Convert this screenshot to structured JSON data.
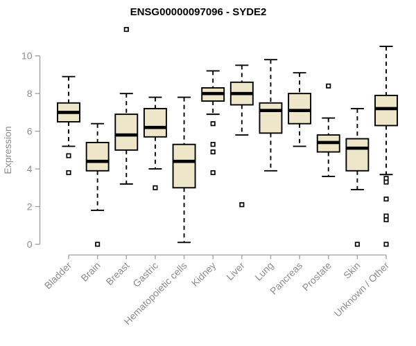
{
  "chart_data": {
    "type": "boxplot",
    "title": "ENSG00000097096 - SYDE2",
    "xlabel": "",
    "ylabel": "Expression",
    "ylim": [
      0,
      11.6
    ],
    "yticks": [
      0,
      2,
      4,
      6,
      8,
      10
    ],
    "grid": false,
    "legend": "none",
    "categories": [
      "Bladder",
      "Brain",
      "Breast",
      "Gastric",
      "Hematopoietic cells",
      "Kidney",
      "Liver",
      "Lung",
      "Pancreas",
      "Prostate",
      "Skin",
      "Unknown / Other"
    ],
    "series": [
      {
        "category": "Bladder",
        "whisker_low": 5.2,
        "q1": 6.5,
        "median": 7.0,
        "q3": 7.5,
        "whisker_high": 8.9,
        "outliers": [
          4.7,
          3.8
        ]
      },
      {
        "category": "Brain",
        "whisker_low": 1.8,
        "q1": 3.9,
        "median": 4.4,
        "q3": 5.4,
        "whisker_high": 6.4,
        "outliers": [
          0
        ]
      },
      {
        "category": "Breast",
        "whisker_low": 3.2,
        "q1": 5.0,
        "median": 5.8,
        "q3": 6.9,
        "whisker_high": 8.0,
        "outliers": [
          11.4
        ]
      },
      {
        "category": "Gastric",
        "whisker_low": 4.0,
        "q1": 5.7,
        "median": 6.2,
        "q3": 7.2,
        "whisker_high": 7.8,
        "outliers": [
          3.0
        ]
      },
      {
        "category": "Hematopoietic cells",
        "whisker_low": 0.1,
        "q1": 3.0,
        "median": 4.4,
        "q3": 5.3,
        "whisker_high": 7.8,
        "outliers": []
      },
      {
        "category": "Kidney",
        "whisker_low": 6.9,
        "q1": 7.6,
        "median": 8.0,
        "q3": 8.3,
        "whisker_high": 9.2,
        "outliers": [
          6.4,
          5.3,
          4.9,
          3.8
        ]
      },
      {
        "category": "Liver",
        "whisker_low": 5.8,
        "q1": 7.4,
        "median": 8.0,
        "q3": 8.6,
        "whisker_high": 9.5,
        "outliers": [
          2.1
        ]
      },
      {
        "category": "Lung",
        "whisker_low": 3.9,
        "q1": 5.9,
        "median": 7.1,
        "q3": 7.5,
        "whisker_high": 9.8,
        "outliers": []
      },
      {
        "category": "Pancreas",
        "whisker_low": 5.2,
        "q1": 6.4,
        "median": 7.1,
        "q3": 8.0,
        "whisker_high": 9.1,
        "outliers": []
      },
      {
        "category": "Prostate",
        "whisker_low": 3.6,
        "q1": 4.9,
        "median": 5.4,
        "q3": 5.8,
        "whisker_high": 6.7,
        "outliers": [
          8.4
        ]
      },
      {
        "category": "Skin",
        "whisker_low": 2.9,
        "q1": 3.9,
        "median": 5.1,
        "q3": 5.6,
        "whisker_high": 7.2,
        "outliers": [
          0
        ]
      },
      {
        "category": "Unknown / Other",
        "whisker_low": 3.7,
        "q1": 6.3,
        "median": 7.2,
        "q3": 7.9,
        "whisker_high": 10.5,
        "outliers": [
          3.5,
          3.3,
          2.4,
          1.5,
          1.3,
          0
        ]
      }
    ],
    "colors": {
      "box_fill": "#EDE6C9",
      "box_stroke": "#000000",
      "median": "#000000",
      "whisker": "#000000",
      "outlier": "#000000",
      "axis": "#9E9E9E",
      "tick_label": "#8C8C8C",
      "title": "#000000"
    }
  }
}
